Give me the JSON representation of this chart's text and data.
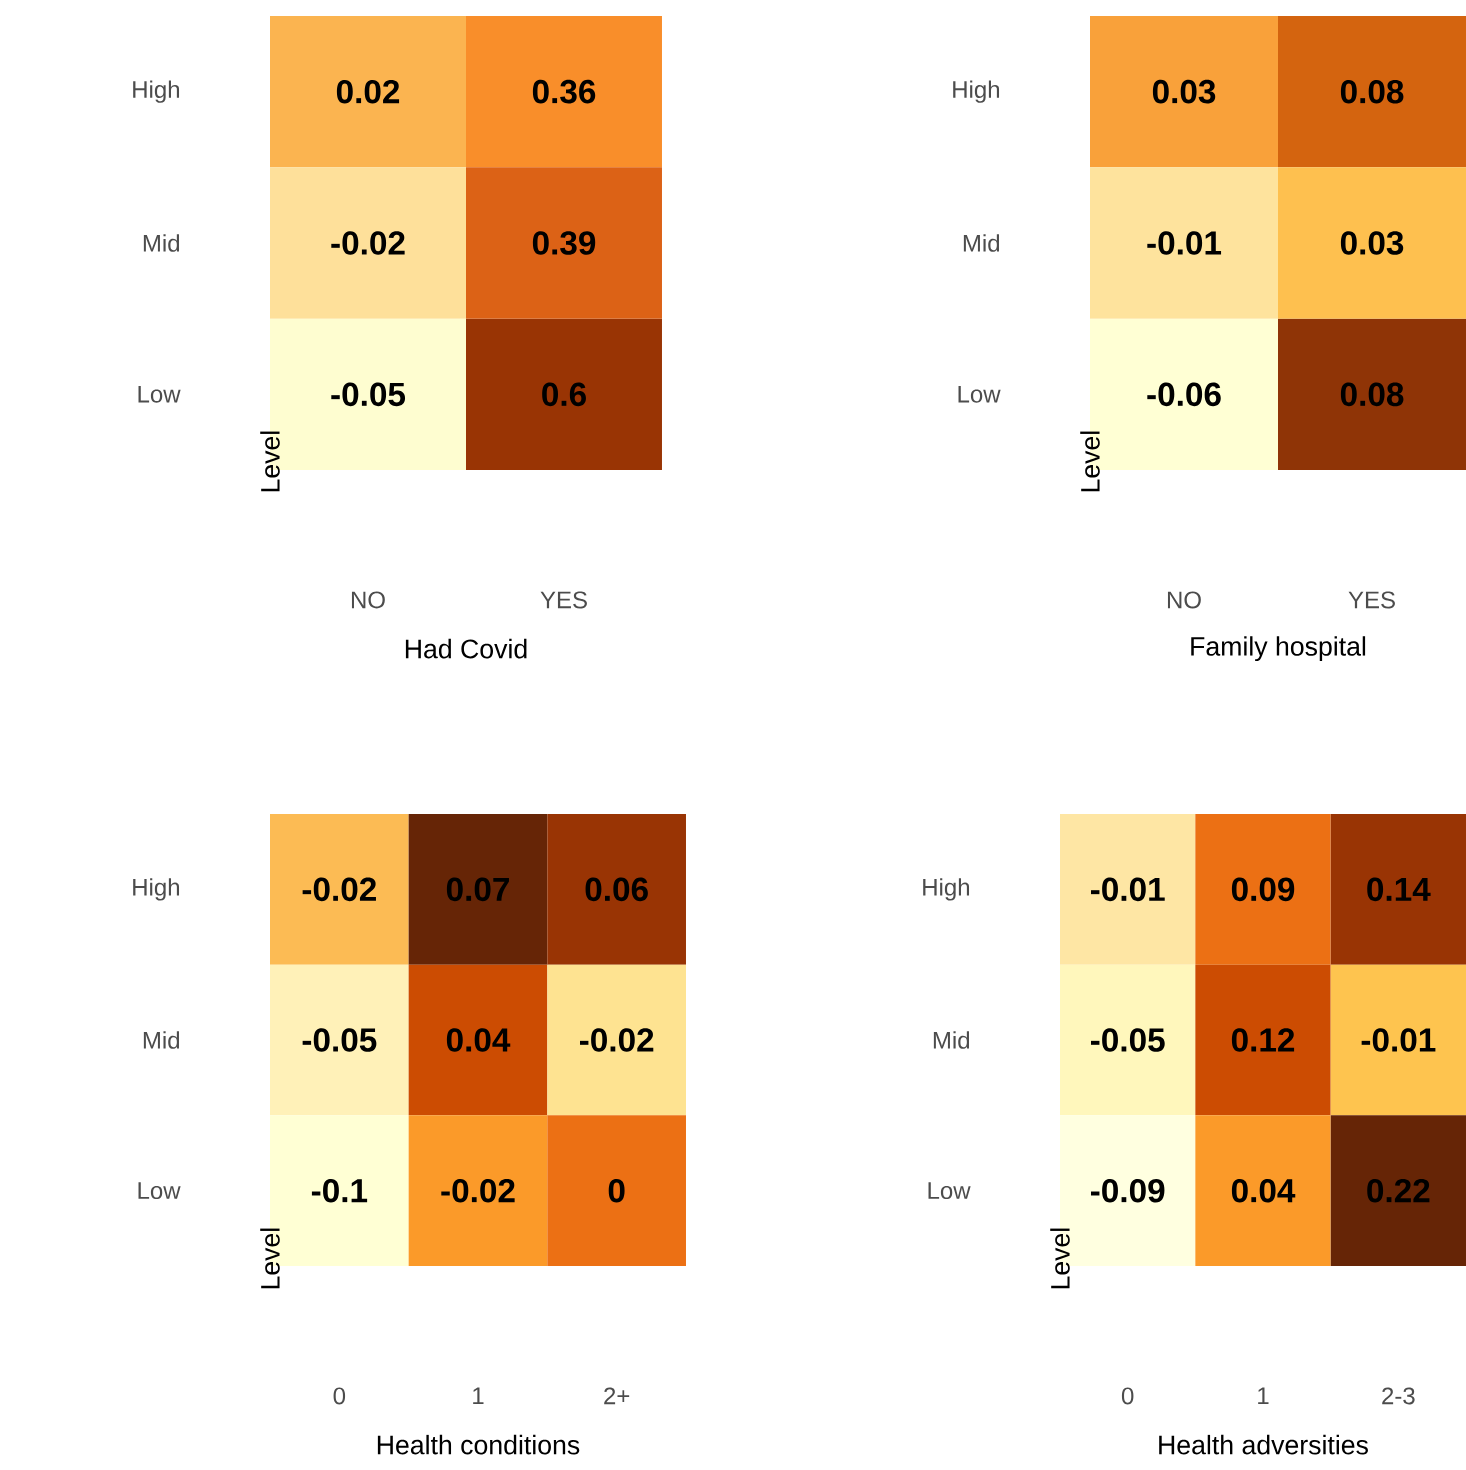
{
  "chart_data": [
    {
      "type": "heatmap",
      "xlabel": "Had Covid",
      "ylabel": "Level",
      "categories": [
        "NO",
        "YES"
      ],
      "y_categories": [
        "High",
        "Mid",
        "Low"
      ],
      "cells": [
        [
          0.02,
          0.36
        ],
        [
          -0.02,
          0.39
        ],
        [
          -0.05,
          0.6
        ]
      ],
      "colors": [
        [
          "#fbb450",
          "#f98e2a"
        ],
        [
          "#fee09a",
          "#dc6216"
        ],
        [
          "#fefdd0",
          "#993404"
        ]
      ],
      "data_labels": true
    },
    {
      "type": "heatmap",
      "xlabel": "Family hospital",
      "ylabel": "Level",
      "categories": [
        "NO",
        "YES"
      ],
      "y_categories": [
        "High",
        "Mid",
        "Low"
      ],
      "cells": [
        [
          0.03,
          0.08
        ],
        [
          -0.01,
          0.03
        ],
        [
          -0.06,
          0.08
        ]
      ],
      "colors": [
        [
          "#f9a13a",
          "#d4640f"
        ],
        [
          "#fee39d",
          "#fec04f"
        ],
        [
          "#ffffd4",
          "#8f3406"
        ]
      ],
      "data_labels": true
    },
    {
      "type": "heatmap",
      "xlabel": "Health conditions",
      "ylabel": "Level",
      "categories": [
        "0",
        "1",
        "2+"
      ],
      "y_categories": [
        "High",
        "Mid",
        "Low"
      ],
      "cells": [
        [
          -0.02,
          0.07,
          0.06
        ],
        [
          -0.05,
          0.04,
          -0.02
        ],
        [
          -0.1,
          -0.02,
          0
        ]
      ],
      "colors": [
        [
          "#fcbb54",
          "#662506",
          "#993404"
        ],
        [
          "#fff1b8",
          "#cc4c02",
          "#fee391"
        ],
        [
          "#ffffd4",
          "#fb9a29",
          "#ec7014"
        ]
      ],
      "data_labels": true
    },
    {
      "type": "heatmap",
      "xlabel": "Health adversities",
      "ylabel": "Level",
      "categories": [
        "0",
        "1",
        "2-3"
      ],
      "y_categories": [
        "High",
        "Mid",
        "Low"
      ],
      "cells": [
        [
          -0.01,
          0.09,
          0.14
        ],
        [
          -0.05,
          0.12,
          -0.01
        ],
        [
          -0.09,
          0.04,
          0.22
        ]
      ],
      "colors": [
        [
          "#fee6a4",
          "#ec7014",
          "#993404"
        ],
        [
          "#fff7bc",
          "#cc4c02",
          "#fec44f"
        ],
        [
          "#ffffe0",
          "#fb9a29",
          "#662506"
        ]
      ],
      "data_labels": true
    }
  ]
}
